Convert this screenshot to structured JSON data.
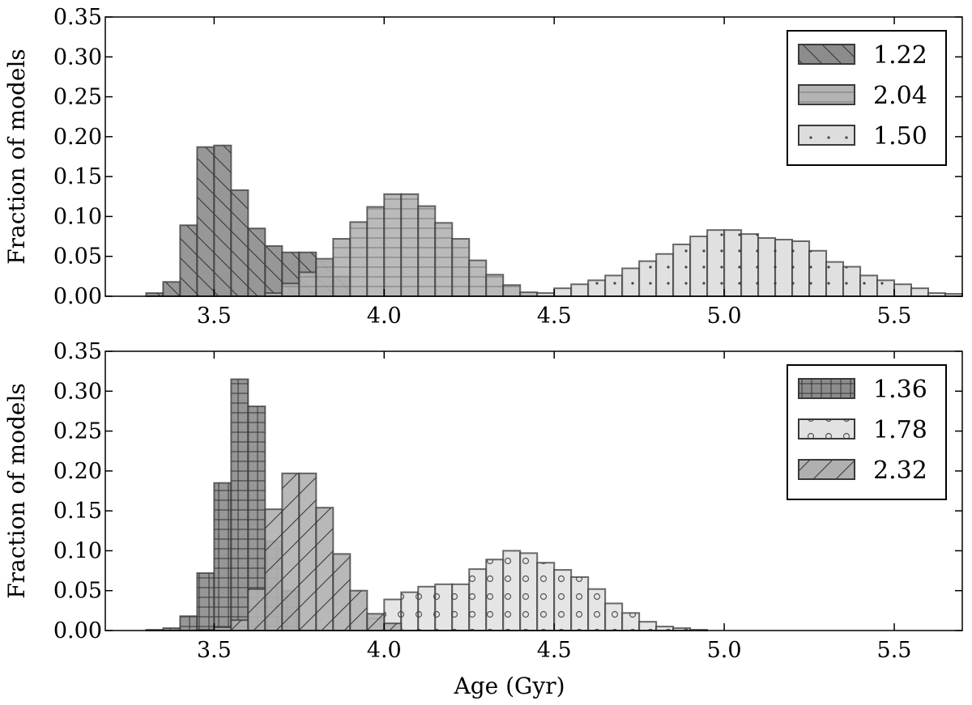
{
  "chart_data": [
    {
      "type": "histogram",
      "panel": "top",
      "title": "",
      "xlabel": "",
      "ylabel": "Fraction of models",
      "xlim": [
        3.18,
        5.7
      ],
      "ylim": [
        0,
        0.35
      ],
      "grid": false,
      "legend_position": "top-right",
      "xticks": [
        "3.5",
        "4.0",
        "4.5",
        "5.0",
        "5.5"
      ],
      "xtick_values": [
        3.5,
        4.0,
        4.5,
        5.0,
        5.5
      ],
      "yticks": [
        "0.00",
        "0.05",
        "0.10",
        "0.15",
        "0.20",
        "0.25",
        "0.30",
        "0.35"
      ],
      "ytick_values": [
        0,
        0.05,
        0.1,
        0.15,
        0.2,
        0.25,
        0.3,
        0.35
      ],
      "series": [
        {
          "name": "1.22",
          "color": "#8c8c8c",
          "hatch": "backslash",
          "bin_width": 0.05,
          "bin_centers": [
            3.325,
            3.375,
            3.425,
            3.475,
            3.525,
            3.575,
            3.625,
            3.675,
            3.725,
            3.775,
            3.825,
            3.875
          ],
          "values": [
            0.004,
            0.018,
            0.089,
            0.187,
            0.189,
            0.133,
            0.085,
            0.063,
            0.055,
            0.055,
            0.044,
            0.025
          ]
        },
        {
          "name": "2.04",
          "color": "#b3b3b3",
          "hatch": "horizontal",
          "bin_width": 0.05,
          "bin_centers": [
            3.675,
            3.725,
            3.775,
            3.825,
            3.875,
            3.925,
            3.975,
            4.025,
            4.075,
            4.125,
            4.175,
            4.225,
            4.275,
            4.325,
            4.375,
            4.425
          ],
          "values": [
            0.004,
            0.016,
            0.03,
            0.047,
            0.072,
            0.093,
            0.112,
            0.128,
            0.128,
            0.113,
            0.092,
            0.072,
            0.045,
            0.027,
            0.014,
            0.005
          ]
        },
        {
          "name": "1.50",
          "color": "#dddddd",
          "hatch": "dots",
          "bin_width": 0.05,
          "bin_centers": [
            4.475,
            4.525,
            4.575,
            4.625,
            4.675,
            4.725,
            4.775,
            4.825,
            4.875,
            4.925,
            4.975,
            5.025,
            5.075,
            5.125,
            5.175,
            5.225,
            5.275,
            5.325,
            5.375,
            5.425,
            5.475,
            5.525,
            5.575,
            5.625,
            5.675
          ],
          "values": [
            0.004,
            0.01,
            0.015,
            0.02,
            0.026,
            0.035,
            0.044,
            0.053,
            0.065,
            0.075,
            0.083,
            0.083,
            0.078,
            0.073,
            0.071,
            0.069,
            0.057,
            0.043,
            0.037,
            0.026,
            0.02,
            0.015,
            0.01,
            0.004,
            0.003
          ]
        }
      ]
    },
    {
      "type": "histogram",
      "panel": "bottom",
      "title": "",
      "xlabel": "Age (Gyr)",
      "ylabel": "Fraction of models",
      "xlim": [
        3.18,
        5.7
      ],
      "ylim": [
        0,
        0.35
      ],
      "grid": false,
      "legend_position": "top-right",
      "xticks": [
        "3.5",
        "4.0",
        "4.5",
        "5.0",
        "5.5"
      ],
      "xtick_values": [
        3.5,
        4.0,
        4.5,
        5.0,
        5.5
      ],
      "yticks": [
        "0.00",
        "0.05",
        "0.10",
        "0.15",
        "0.20",
        "0.25",
        "0.30",
        "0.35"
      ],
      "ytick_values": [
        0,
        0.05,
        0.1,
        0.15,
        0.2,
        0.25,
        0.3,
        0.35
      ],
      "series": [
        {
          "name": "1.36",
          "color": "#8c8c8c",
          "hatch": "grid",
          "bin_width": 0.05,
          "bin_centers": [
            3.325,
            3.375,
            3.425,
            3.475,
            3.525,
            3.575,
            3.625,
            3.675,
            3.725
          ],
          "values": [
            0.001,
            0.003,
            0.018,
            0.072,
            0.185,
            0.315,
            0.281,
            0.112,
            0.05
          ]
        },
        {
          "name": "1.78",
          "color": "#e2e2e2",
          "hatch": "circles",
          "bin_width": 0.05,
          "bin_centers": [
            3.975,
            4.025,
            4.075,
            4.125,
            4.175,
            4.225,
            4.275,
            4.325,
            4.375,
            4.425,
            4.475,
            4.525,
            4.575,
            4.625,
            4.675,
            4.725,
            4.775,
            4.825,
            4.875,
            4.925
          ],
          "values": [
            0.015,
            0.039,
            0.048,
            0.055,
            0.058,
            0.058,
            0.077,
            0.089,
            0.1,
            0.097,
            0.085,
            0.076,
            0.067,
            0.052,
            0.034,
            0.022,
            0.011,
            0.005,
            0.003,
            0.001
          ]
        },
        {
          "name": "2.32",
          "color": "#b0b0b0",
          "hatch": "slash",
          "bin_width": 0.05,
          "bin_centers": [
            3.475,
            3.525,
            3.575,
            3.625,
            3.675,
            3.725,
            3.775,
            3.825,
            3.875,
            3.925,
            3.975,
            4.025
          ],
          "values": [
            0.001,
            0.004,
            0.013,
            0.052,
            0.152,
            0.197,
            0.197,
            0.154,
            0.096,
            0.05,
            0.021,
            0.009
          ]
        }
      ]
    }
  ]
}
